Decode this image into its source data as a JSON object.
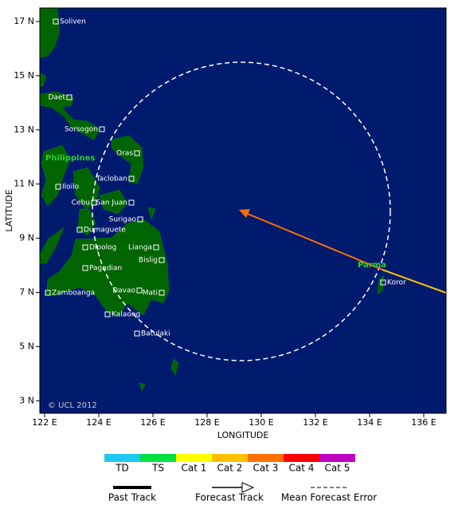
{
  "map": {
    "lat_ticks": [
      "17 N",
      "15 N",
      "13 N",
      "11 N",
      "9 N",
      "7 N",
      "5 N",
      "3 N"
    ],
    "lon_ticks": [
      "122 E",
      "124 E",
      "126 E",
      "128 E",
      "130 E",
      "132 E",
      "134 E",
      "136 E"
    ],
    "x_label": "LONGITUDE",
    "y_label": "LATITUDE",
    "cities": [
      "Soliven",
      "Daet",
      "Sorsogon",
      "Oras",
      "Tacloban",
      "Iloilo",
      "Cebu",
      "San Juan",
      "Surigao",
      "Dumaguete",
      "Dipolog",
      "Lianga",
      "Bislig",
      "Pagadian",
      "Zamboanga",
      "Davao",
      "Mati",
      "Kalaong",
      "Batulaki",
      "Koror"
    ],
    "country": "Philippines",
    "storm": "Parma",
    "credit": "© UCL 2012"
  },
  "legend": {
    "categories": [
      "TD",
      "TS",
      "Cat 1",
      "Cat 2",
      "Cat 3",
      "Cat 4",
      "Cat 5"
    ],
    "colors": [
      "#1ec8f0",
      "#00e040",
      "#ffff00",
      "#ffc000",
      "#ff7000",
      "#ff0000",
      "#c000c0"
    ],
    "lines": [
      "Past Track",
      "Forecast Track",
      "Mean Forecast Error"
    ]
  }
}
